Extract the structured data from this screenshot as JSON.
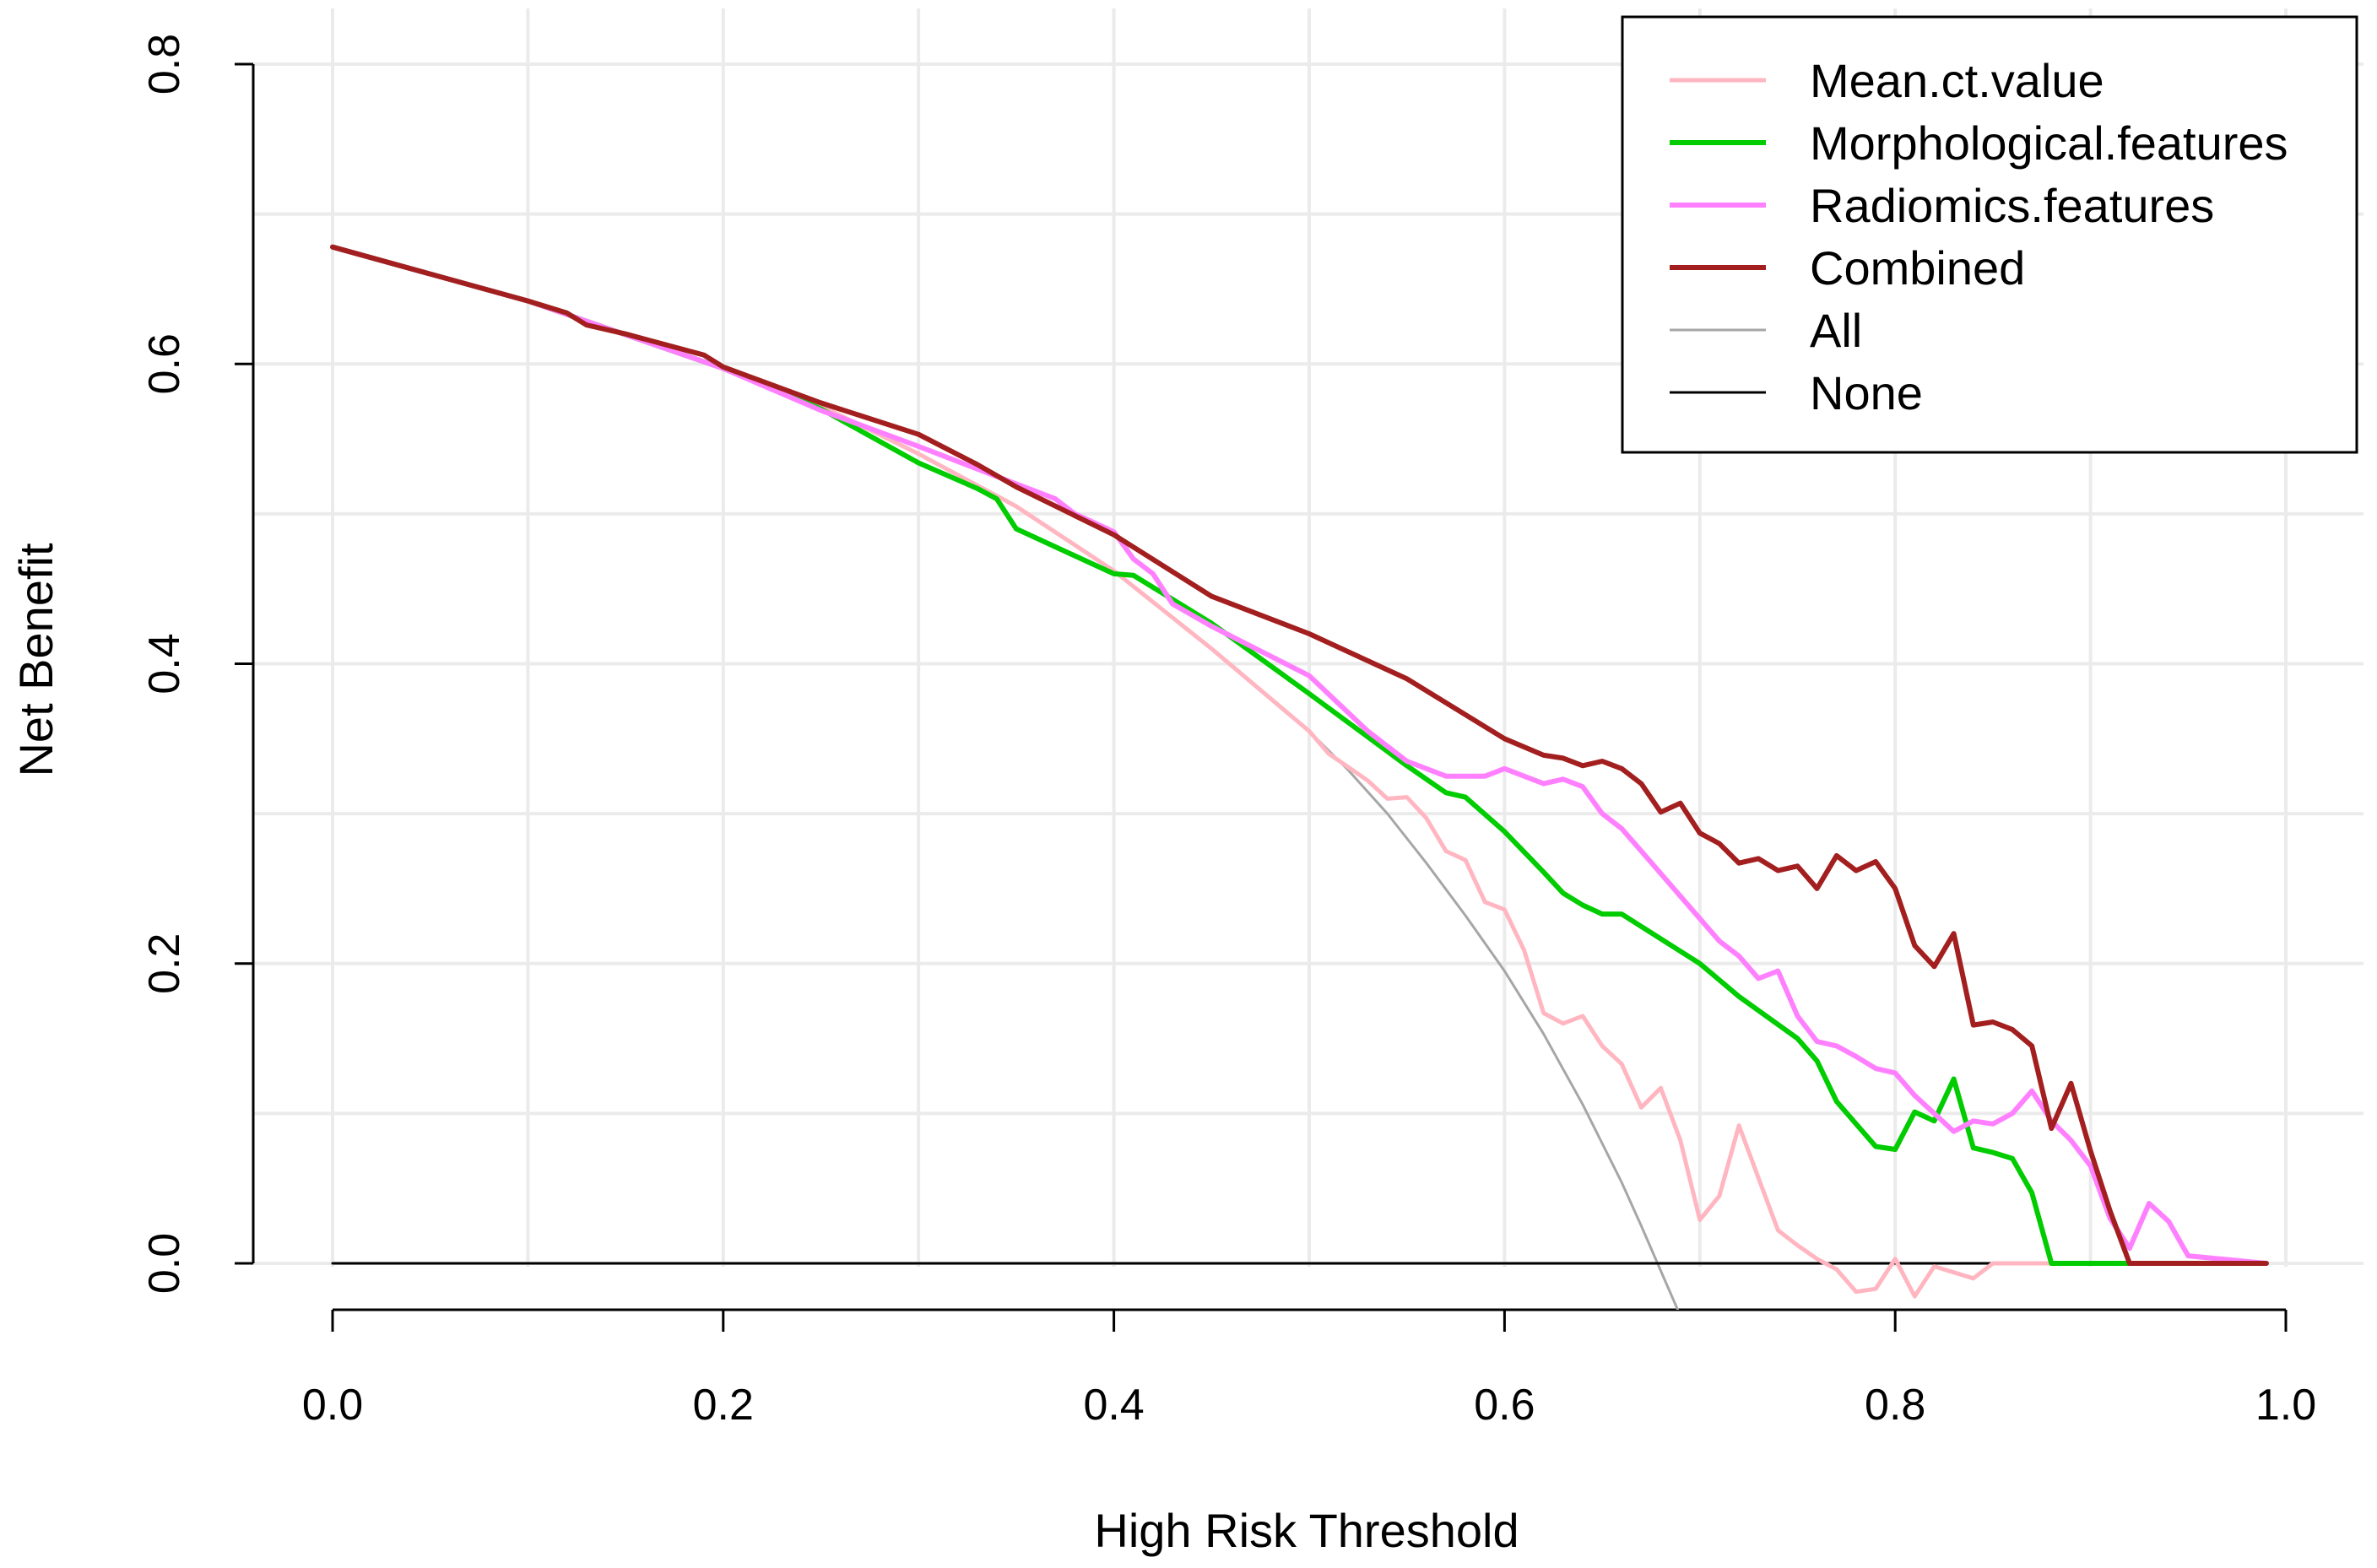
{
  "chart_data": {
    "type": "line",
    "title": "",
    "xlabel": "High Risk Threshold",
    "ylabel": "Net Benefit",
    "xlim": [
      0,
      1
    ],
    "ylim": [
      0,
      0.8
    ],
    "grid": true,
    "legend_position": "top-right",
    "x_ticks": [
      {
        "value": 0.0,
        "label": "0.0"
      },
      {
        "value": 0.2,
        "label": "0.2"
      },
      {
        "value": 0.4,
        "label": "0.4"
      },
      {
        "value": 0.6,
        "label": "0.6"
      },
      {
        "value": 0.8,
        "label": "0.8"
      },
      {
        "value": 1.0,
        "label": "1.0"
      }
    ],
    "y_ticks": [
      {
        "value": 0.0,
        "label": "0.0"
      },
      {
        "value": 0.2,
        "label": "0.2"
      },
      {
        "value": 0.4,
        "label": "0.4"
      },
      {
        "value": 0.6,
        "label": "0.6"
      },
      {
        "value": 0.8,
        "label": "0.8"
      }
    ],
    "series": [
      {
        "name": "Mean.ct.value",
        "color": "#FFB6C1",
        "x": [
          0,
          0.1,
          0.2,
          0.25,
          0.3,
          0.35,
          0.4,
          0.45,
          0.5,
          0.51,
          0.52,
          0.53,
          0.54,
          0.55,
          0.56,
          0.57,
          0.58,
          0.59,
          0.6,
          0.61,
          0.62,
          0.63,
          0.64,
          0.65,
          0.66,
          0.67,
          0.68,
          0.69,
          0.7,
          0.71,
          0.72,
          0.73,
          0.74,
          0.75,
          0.76,
          0.77,
          0.78,
          0.79,
          0.8,
          0.81,
          0.82,
          0.83,
          0.84,
          0.85,
          0.86,
          0.99
        ],
        "values": [
          0.678,
          0.642,
          0.597,
          0.572,
          0.54,
          0.505,
          0.462,
          0.41,
          0.355,
          0.34,
          0.331,
          0.322,
          0.31,
          0.311,
          0.297,
          0.275,
          0.269,
          0.241,
          0.236,
          0.209,
          0.167,
          0.16,
          0.165,
          0.145,
          0.133,
          0.104,
          0.117,
          0.082,
          0.029,
          0.045,
          0.092,
          0.057,
          0.022,
          0.012,
          0.003,
          -0.004,
          -0.019,
          -0.017,
          0.003,
          -0.022,
          -0.002,
          -0.006,
          -0.01,
          0,
          0,
          0
        ]
      },
      {
        "name": "Morphological.features",
        "color": "#00CC00",
        "x": [
          0,
          0.1,
          0.2,
          0.25,
          0.3,
          0.33,
          0.34,
          0.35,
          0.4,
          0.41,
          0.45,
          0.5,
          0.55,
          0.57,
          0.58,
          0.6,
          0.62,
          0.63,
          0.64,
          0.65,
          0.66,
          0.7,
          0.72,
          0.75,
          0.76,
          0.77,
          0.78,
          0.79,
          0.8,
          0.81,
          0.82,
          0.83,
          0.84,
          0.85,
          0.86,
          0.87,
          0.88,
          0.92,
          0.99
        ],
        "values": [
          0.678,
          0.642,
          0.597,
          0.57,
          0.534,
          0.517,
          0.51,
          0.49,
          0.46,
          0.459,
          0.427,
          0.38,
          0.332,
          0.314,
          0.311,
          0.288,
          0.261,
          0.247,
          0.239,
          0.233,
          0.233,
          0.2,
          0.178,
          0.15,
          0.135,
          0.108,
          0.093,
          0.078,
          0.076,
          0.101,
          0.095,
          0.123,
          0.077,
          0.074,
          0.07,
          0.047,
          0,
          0,
          0
        ]
      },
      {
        "name": "Radiomics.features",
        "color": "#FF80FF",
        "x": [
          0,
          0.1,
          0.2,
          0.25,
          0.3,
          0.35,
          0.36,
          0.37,
          0.38,
          0.39,
          0.4,
          0.41,
          0.42,
          0.43,
          0.45,
          0.5,
          0.53,
          0.55,
          0.57,
          0.59,
          0.6,
          0.62,
          0.63,
          0.64,
          0.65,
          0.66,
          0.67,
          0.7,
          0.71,
          0.72,
          0.73,
          0.74,
          0.75,
          0.76,
          0.77,
          0.78,
          0.79,
          0.8,
          0.81,
          0.82,
          0.83,
          0.84,
          0.85,
          0.86,
          0.87,
          0.88,
          0.89,
          0.9,
          0.91,
          0.92,
          0.93,
          0.94,
          0.95,
          0.99
        ],
        "values": [
          0.678,
          0.642,
          0.597,
          0.569,
          0.545,
          0.52,
          0.515,
          0.51,
          0.5,
          0.494,
          0.488,
          0.47,
          0.46,
          0.44,
          0.425,
          0.392,
          0.355,
          0.335,
          0.325,
          0.325,
          0.33,
          0.32,
          0.323,
          0.318,
          0.3,
          0.29,
          0.275,
          0.23,
          0.215,
          0.205,
          0.19,
          0.195,
          0.165,
          0.148,
          0.145,
          0.138,
          0.13,
          0.127,
          0.112,
          0.1,
          0.088,
          0.095,
          0.093,
          0.1,
          0.115,
          0.095,
          0.082,
          0.065,
          0.03,
          0.01,
          0.04,
          0.028,
          0.005,
          0
        ]
      },
      {
        "name": "Combined",
        "color": "#A31F1F",
        "x": [
          0,
          0.1,
          0.12,
          0.13,
          0.15,
          0.19,
          0.2,
          0.25,
          0.3,
          0.33,
          0.35,
          0.4,
          0.45,
          0.5,
          0.55,
          0.6,
          0.62,
          0.63,
          0.64,
          0.65,
          0.66,
          0.67,
          0.68,
          0.69,
          0.7,
          0.71,
          0.72,
          0.73,
          0.74,
          0.75,
          0.76,
          0.77,
          0.78,
          0.79,
          0.8,
          0.81,
          0.82,
          0.83,
          0.84,
          0.85,
          0.86,
          0.87,
          0.88,
          0.89,
          0.9,
          0.91,
          0.92,
          0.99
        ],
        "values": [
          0.678,
          0.642,
          0.634,
          0.626,
          0.62,
          0.606,
          0.598,
          0.574,
          0.553,
          0.533,
          0.518,
          0.486,
          0.445,
          0.42,
          0.39,
          0.35,
          0.339,
          0.337,
          0.332,
          0.335,
          0.33,
          0.32,
          0.301,
          0.307,
          0.287,
          0.28,
          0.267,
          0.27,
          0.262,
          0.265,
          0.25,
          0.272,
          0.262,
          0.268,
          0.25,
          0.212,
          0.198,
          0.22,
          0.159,
          0.161,
          0.156,
          0.145,
          0.09,
          0.12,
          0.075,
          0.035,
          0,
          0
        ]
      },
      {
        "name": "All",
        "color": "#A6A6A6",
        "x": [
          0.5,
          0.52,
          0.54,
          0.56,
          0.58,
          0.6,
          0.62,
          0.64,
          0.66,
          0.67,
          0.68,
          0.685,
          0.69
        ],
        "values": [
          0.355,
          0.329,
          0.3,
          0.267,
          0.232,
          0.195,
          0.153,
          0.106,
          0.054,
          0.025,
          -0.005,
          -0.02,
          -0.035
        ]
      },
      {
        "name": "None",
        "color": "#000000",
        "x": [
          0,
          0.99
        ],
        "values": [
          0,
          0
        ]
      }
    ]
  }
}
